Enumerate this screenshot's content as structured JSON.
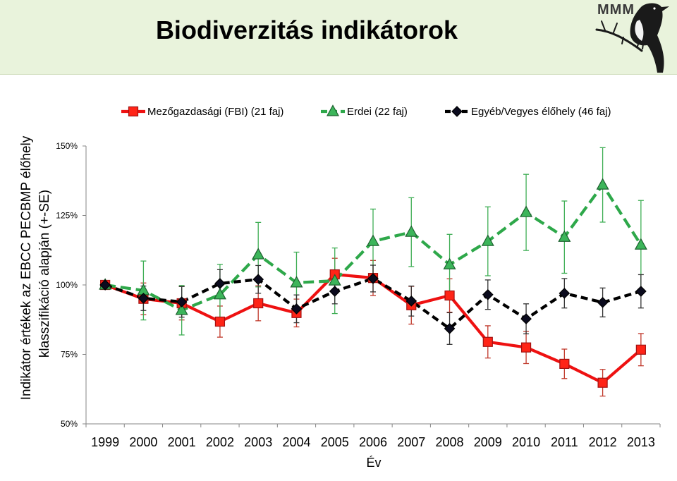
{
  "slide": {
    "title": "Biodiverzitás indikátorok",
    "header_color": "#e9f3dc"
  },
  "logo": {
    "text": "MMM",
    "icon": "bird-logo-icon",
    "color": "#1a1a1a"
  },
  "chart_data": {
    "type": "line",
    "xlabel": "Év",
    "ylabel_lines": [
      "Indikátor értékek az EBCC PECBMP élőhely",
      "klasszifikáció alapján (+-SE)"
    ],
    "categories": [
      "1999",
      "2000",
      "2001",
      "2002",
      "2003",
      "2004",
      "2005",
      "2006",
      "2007",
      "2008",
      "2009",
      "2010",
      "2011",
      "2012",
      "2013"
    ],
    "ylim": [
      50,
      150
    ],
    "yticks": [
      50,
      75,
      100,
      125,
      150
    ],
    "ytick_labels": [
      "50%",
      "75%",
      "100%",
      "125%",
      "150%"
    ],
    "grid": false,
    "legend_position": "top",
    "axis_color": "#868686",
    "series": [
      {
        "name": "Mezőgazdasági (FBI) (21 faj)",
        "dashed": false,
        "marker": "square",
        "line_color": "#ee1111",
        "marker_fill": "#ff2417",
        "marker_stroke": "#a11212",
        "error_color": "#c0392b",
        "values": [
          100,
          95.0,
          93.4,
          86.8,
          93.4,
          89.9,
          103.8,
          102.5,
          92.7,
          96.2,
          79.5,
          77.5,
          71.6,
          64.8,
          76.7
        ],
        "se": [
          0,
          5.7,
          6.0,
          5.6,
          6.3,
          5.0,
          5.8,
          6.3,
          6.8,
          6.0,
          5.8,
          5.8,
          5.3,
          4.8,
          5.8
        ]
      },
      {
        "name": "Erdei (22 faj)",
        "dashed": true,
        "marker": "triangle",
        "line_color": "#2ea84a",
        "marker_fill": "#3cb55a",
        "marker_stroke": "#1c5f2e",
        "error_color": "#3fae55",
        "values": [
          100,
          98.0,
          90.9,
          96.5,
          110.9,
          100.8,
          101.5,
          115.7,
          119.0,
          107.3,
          115.7,
          126.1,
          117.2,
          136.0,
          114.4
        ],
        "se": [
          0,
          10.6,
          8.9,
          10.9,
          11.6,
          11.0,
          11.8,
          11.6,
          12.4,
          10.9,
          12.4,
          13.7,
          13.0,
          13.4,
          16.0
        ]
      },
      {
        "name": "Egyéb/Vegyes élőhely (46 faj)",
        "dashed": true,
        "marker": "diamond",
        "line_color": "#000000",
        "marker_fill": "#0b0b1e",
        "marker_stroke": "#000000",
        "error_color": "#333333",
        "values": [
          100,
          95.2,
          93.9,
          100.5,
          102.0,
          91.4,
          97.7,
          102.3,
          94.2,
          84.3,
          96.5,
          87.8,
          97.0,
          93.7,
          97.7
        ],
        "se": [
          0,
          4.4,
          5.5,
          5.0,
          5.0,
          5.0,
          4.5,
          4.8,
          5.4,
          5.7,
          5.3,
          5.4,
          5.3,
          5.2,
          6.0
        ]
      }
    ]
  }
}
